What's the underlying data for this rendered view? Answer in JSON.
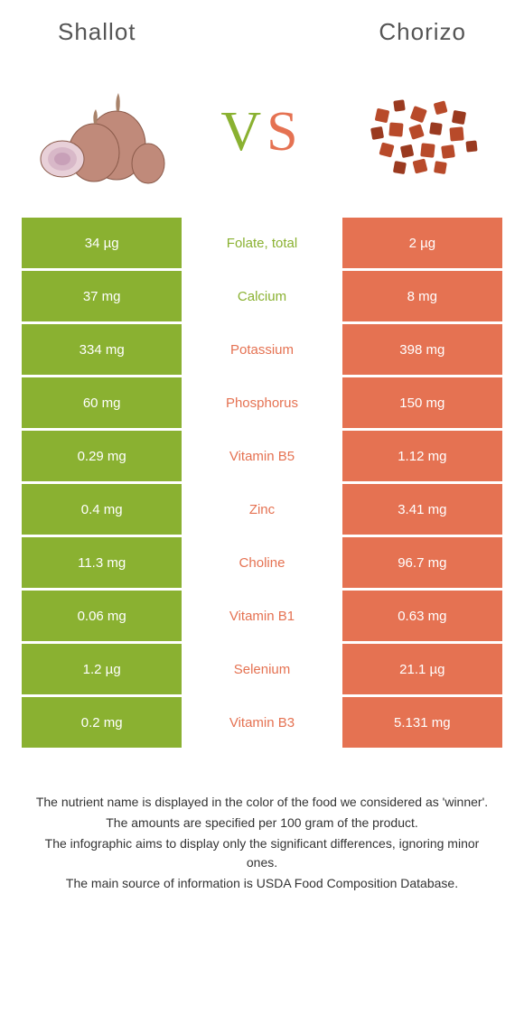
{
  "header": {
    "left_title": "Shallot",
    "right_title": "Chorizo"
  },
  "vs": {
    "v": "V",
    "s": "S"
  },
  "colors": {
    "left_bg": "#8ab131",
    "right_bg": "#e57252",
    "left_text": "#8ab131",
    "right_text": "#e57252"
  },
  "rows": [
    {
      "left": "34 µg",
      "label": "Folate, total",
      "right": "2 µg",
      "winner": "left"
    },
    {
      "left": "37 mg",
      "label": "Calcium",
      "right": "8 mg",
      "winner": "left"
    },
    {
      "left": "334 mg",
      "label": "Potassium",
      "right": "398 mg",
      "winner": "right"
    },
    {
      "left": "60 mg",
      "label": "Phosphorus",
      "right": "150 mg",
      "winner": "right"
    },
    {
      "left": "0.29 mg",
      "label": "Vitamin B5",
      "right": "1.12 mg",
      "winner": "right"
    },
    {
      "left": "0.4 mg",
      "label": "Zinc",
      "right": "3.41 mg",
      "winner": "right"
    },
    {
      "left": "11.3 mg",
      "label": "Choline",
      "right": "96.7 mg",
      "winner": "right"
    },
    {
      "left": "0.06 mg",
      "label": "Vitamin B1",
      "right": "0.63 mg",
      "winner": "right"
    },
    {
      "left": "1.2 µg",
      "label": "Selenium",
      "right": "21.1 µg",
      "winner": "right"
    },
    {
      "left": "0.2 mg",
      "label": "Vitamin B3",
      "right": "5.131 mg",
      "winner": "right"
    }
  ],
  "footer": {
    "line1": "The nutrient name is displayed in the color of the food we considered as 'winner'.",
    "line2": "The amounts are specified per 100 gram of the product.",
    "line3": "The infographic aims to display only the significant differences, ignoring minor ones.",
    "line4": "The main source of information is USDA Food Composition Database."
  }
}
